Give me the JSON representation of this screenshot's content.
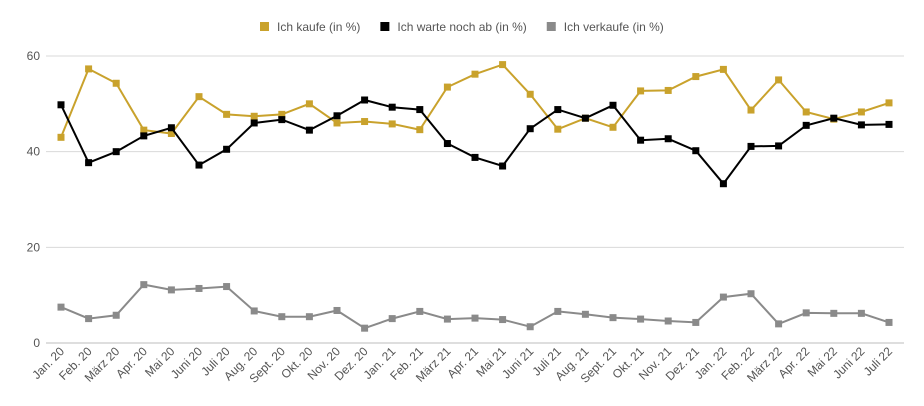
{
  "chart_data": {
    "type": "line",
    "categories": [
      "Jan. 20",
      "Feb. 20",
      "März 20",
      "Apr. 20",
      "Mai 20",
      "Juni 20",
      "Juli 20",
      "Aug. 20",
      "Sept. 20",
      "Okt. 20",
      "Nov. 20",
      "Dez. 20",
      "Jan. 21",
      "Feb. 21",
      "März 21",
      "Apr. 21",
      "Mai 21",
      "Juni 21",
      "Juli 21",
      "Aug. 21",
      "Sept. 21",
      "Okt. 21",
      "Nov. 21",
      "Dez. 21",
      "Jan. 22",
      "Feb. 22",
      "März 22",
      "Apr. 22",
      "Mai 22",
      "Juni 22",
      "Juli 22"
    ],
    "ylim": [
      0,
      60
    ],
    "yticks": [
      0,
      20,
      40,
      60
    ],
    "grid": true,
    "legend_position": "top-center",
    "series": [
      {
        "name": "Ich kaufe (in %)",
        "color": "#c9a22c",
        "values": [
          43,
          57.3,
          54.3,
          44.5,
          43.8,
          51.5,
          47.8,
          47.4,
          47.8,
          50,
          46,
          46.3,
          45.8,
          44.6,
          53.5,
          56.2,
          58.2,
          52,
          44.7,
          47,
          45.1,
          52.7,
          52.8,
          55.7,
          57.2,
          48.7,
          55,
          48.3,
          46.8,
          48.3,
          50.2
        ]
      },
      {
        "name": "Ich warte noch ab (in %)",
        "color": "#000000",
        "values": [
          49.8,
          37.7,
          40,
          43.3,
          45,
          37.2,
          40.5,
          46,
          46.7,
          44.5,
          47.5,
          50.8,
          49.3,
          48.8,
          41.7,
          38.8,
          37,
          44.8,
          48.8,
          47,
          49.7,
          42.4,
          42.7,
          40.2,
          33.3,
          41.1,
          41.2,
          45.5,
          47,
          45.6,
          45.7
        ]
      },
      {
        "name": "Ich verkaufe (in %)",
        "color": "#8a8a8a",
        "values": [
          7.5,
          5.1,
          5.8,
          12.2,
          11.1,
          11.4,
          11.8,
          6.7,
          5.5,
          5.5,
          6.8,
          3.1,
          5.1,
          6.6,
          5,
          5.2,
          4.9,
          3.4,
          6.6,
          6,
          5.3,
          5,
          4.6,
          4.3,
          9.6,
          10.3,
          4,
          6.3,
          6.2,
          6.2,
          4.3
        ]
      }
    ]
  }
}
